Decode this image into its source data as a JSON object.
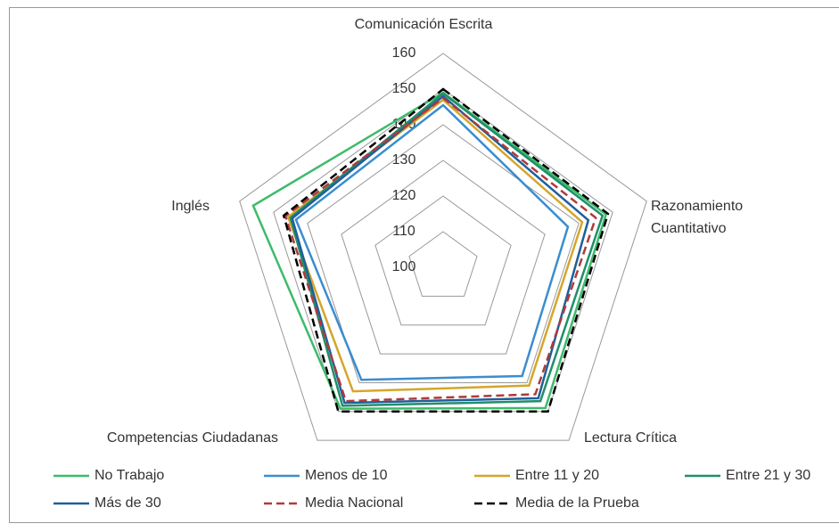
{
  "chart_data": {
    "type": "radar",
    "categories": [
      "Comunicación Escrita",
      "Razonamiento Cuantitativo",
      "Lectura Crítica",
      "Competencias Ciudadanas",
      "Inglés"
    ],
    "rlim": [
      100,
      160
    ],
    "rticks": [
      100,
      110,
      120,
      130,
      140,
      150,
      160
    ],
    "grid": true,
    "series": [
      {
        "name": "No Trabajo",
        "color": "#3dbb6a",
        "dash": false,
        "values": [
          149,
          148,
          148.8,
          149,
          156
        ]
      },
      {
        "name": "Menos de 10",
        "color": "#3a8dd0",
        "dash": false,
        "values": [
          145.5,
          136.8,
          137.7,
          139,
          143.4
        ]
      },
      {
        "name": "Entre 11 y 20",
        "color": "#d4a62a",
        "dash": false,
        "values": [
          147,
          141,
          141,
          143,
          145.7
        ]
      },
      {
        "name": "Entre 21 y 30",
        "color": "#1f8f6a",
        "dash": false,
        "values": [
          148.8,
          147,
          146.4,
          148,
          145
        ]
      },
      {
        "name": "Más de 30",
        "color": "#1f5f9a",
        "dash": false,
        "values": [
          148,
          142.8,
          145.4,
          147,
          144.5
        ]
      },
      {
        "name": "Media Nacional",
        "color": "#b03a3a",
        "dash": true,
        "values": [
          147.5,
          145,
          144,
          146.4,
          146.5
        ]
      },
      {
        "name": "Media de la Prueba",
        "color": "#000000",
        "dash": true,
        "values": [
          150,
          148.6,
          150,
          150,
          147
        ]
      }
    ]
  }
}
